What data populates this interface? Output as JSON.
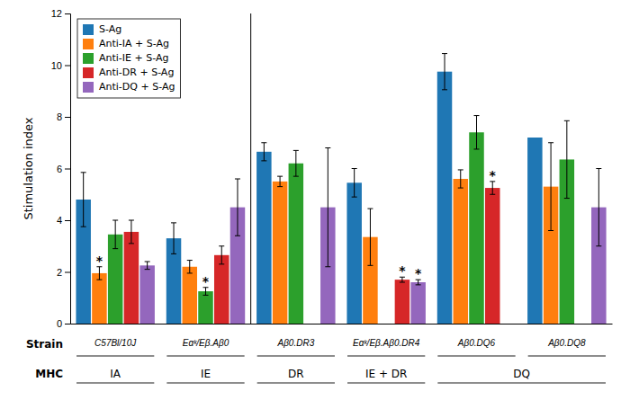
{
  "chart_data": {
    "type": "bar",
    "categories": [
      "C57Bl/10J",
      "Eαᵏ/Eβ.Aβ0",
      "Aβ0.DR3",
      "Eαᵏ/Eβ.Aβ0.DR4",
      "Aβ0.DQ6",
      "Aβ0.DQ8"
    ],
    "xlabel": "Strain",
    "ylabel": "Stimulation index",
    "ylim": [
      0,
      12
    ],
    "yticks": [
      0,
      2,
      4,
      6,
      8,
      10,
      12
    ],
    "grid": false,
    "legend": "upper left",
    "series": [
      {
        "name": "S-Ag",
        "values": [
          4.8,
          3.3,
          6.65,
          5.45,
          9.75,
          7.2
        ],
        "errors": [
          1.05,
          0.6,
          0.35,
          0.55,
          0.7,
          0.0
        ],
        "stars": [
          false,
          false,
          false,
          false,
          false,
          false
        ]
      },
      {
        "name": "Anti-IA + S-Ag",
        "values": [
          1.95,
          2.2,
          5.5,
          3.35,
          5.6,
          5.3
        ],
        "errors": [
          0.25,
          0.25,
          0.2,
          1.1,
          0.35,
          1.7
        ],
        "stars": [
          true,
          false,
          false,
          false,
          false,
          false
        ]
      },
      {
        "name": "Anti-IE + S-Ag",
        "values": [
          3.45,
          1.25,
          6.2,
          null,
          7.4,
          6.35
        ],
        "errors": [
          0.55,
          0.15,
          0.5,
          0.0,
          0.65,
          1.5
        ],
        "stars": [
          false,
          true,
          false,
          false,
          false,
          false
        ]
      },
      {
        "name": "Anti-DR + S-Ag",
        "values": [
          3.55,
          2.65,
          null,
          1.7,
          5.25,
          null
        ],
        "errors": [
          0.45,
          0.35,
          0.0,
          0.1,
          0.25,
          0.0
        ],
        "stars": [
          false,
          false,
          false,
          true,
          true,
          false
        ]
      },
      {
        "name": "Anti-DQ + S-Ag",
        "values": [
          2.25,
          4.5,
          4.5,
          1.6,
          null,
          4.5
        ],
        "errors": [
          0.15,
          1.1,
          2.3,
          0.1,
          0.0,
          1.5
        ],
        "stars": [
          false,
          false,
          false,
          true,
          false,
          false
        ]
      }
    ],
    "star_text": "*",
    "group_row": {
      "title": "MHC",
      "groups": [
        {
          "label": "IA",
          "categories": [
            0
          ]
        },
        {
          "label": "IE",
          "categories": [
            1
          ]
        },
        {
          "label": "DR",
          "categories": [
            2
          ]
        },
        {
          "label": "IE + DR",
          "categories": [
            3
          ]
        },
        {
          "label": "DQ",
          "categories": [
            4,
            5
          ]
        }
      ]
    },
    "divider_between": [
      1,
      2
    ]
  }
}
